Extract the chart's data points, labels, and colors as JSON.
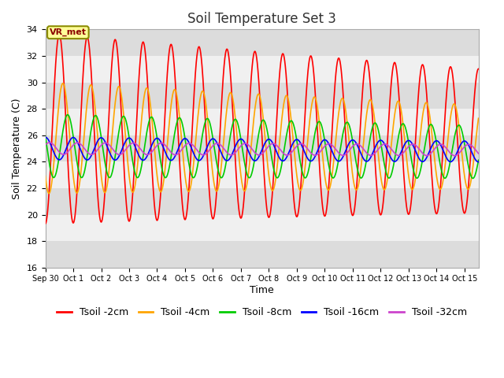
{
  "title": "Soil Temperature Set 3",
  "xlabel": "Time",
  "ylabel": "Soil Temperature (C)",
  "ylim": [
    16,
    34
  ],
  "yticks": [
    16,
    18,
    20,
    22,
    24,
    26,
    28,
    30,
    32,
    34
  ],
  "xtick_labels": [
    "Sep 30",
    "Oct 1",
    "Oct 2",
    "Oct 3",
    "Oct 4",
    "Oct 5",
    "Oct 6",
    "Oct 7",
    "Oct 8",
    "Oct 9",
    "Oct 10",
    "Oct 11",
    "Oct 12",
    "Oct 13",
    "Oct 14",
    "Oct 15"
  ],
  "series": [
    {
      "label": "Tsoil -2cm",
      "color": "#FF0000",
      "amplitude": 7.2,
      "mean": 26.5,
      "phase_shift": 0.25,
      "period": 1.0,
      "amp_decay": 0.018,
      "mean_decay": 0.06
    },
    {
      "label": "Tsoil -4cm",
      "color": "#FFA500",
      "amplitude": 4.2,
      "mean": 25.8,
      "phase_shift": 0.38,
      "period": 1.0,
      "amp_decay": 0.018,
      "mean_decay": 0.045
    },
    {
      "label": "Tsoil -8cm",
      "color": "#00CC00",
      "amplitude": 2.4,
      "mean": 25.2,
      "phase_shift": 0.55,
      "period": 1.0,
      "amp_decay": 0.012,
      "mean_decay": 0.03
    },
    {
      "label": "Tsoil -16cm",
      "color": "#0000FF",
      "amplitude": 0.85,
      "mean": 25.0,
      "phase_shift": 0.75,
      "period": 1.0,
      "amp_decay": 0.005,
      "mean_decay": 0.015
    },
    {
      "label": "Tsoil -32cm",
      "color": "#CC44CC",
      "amplitude": 0.45,
      "mean": 25.0,
      "phase_shift": 0.9,
      "period": 1.0,
      "amp_decay": 0.003,
      "mean_decay": 0.008
    }
  ],
  "annotation_text": "VR_met",
  "bg_color": "#FFFFFF",
  "plot_bg_stripe1": "#DCDCDC",
  "plot_bg_stripe2": "#F0F0F0",
  "grid_color": "#FFFFFF",
  "title_fontsize": 12,
  "label_fontsize": 9,
  "tick_fontsize": 8,
  "legend_fontsize": 9,
  "linewidth": 1.2
}
